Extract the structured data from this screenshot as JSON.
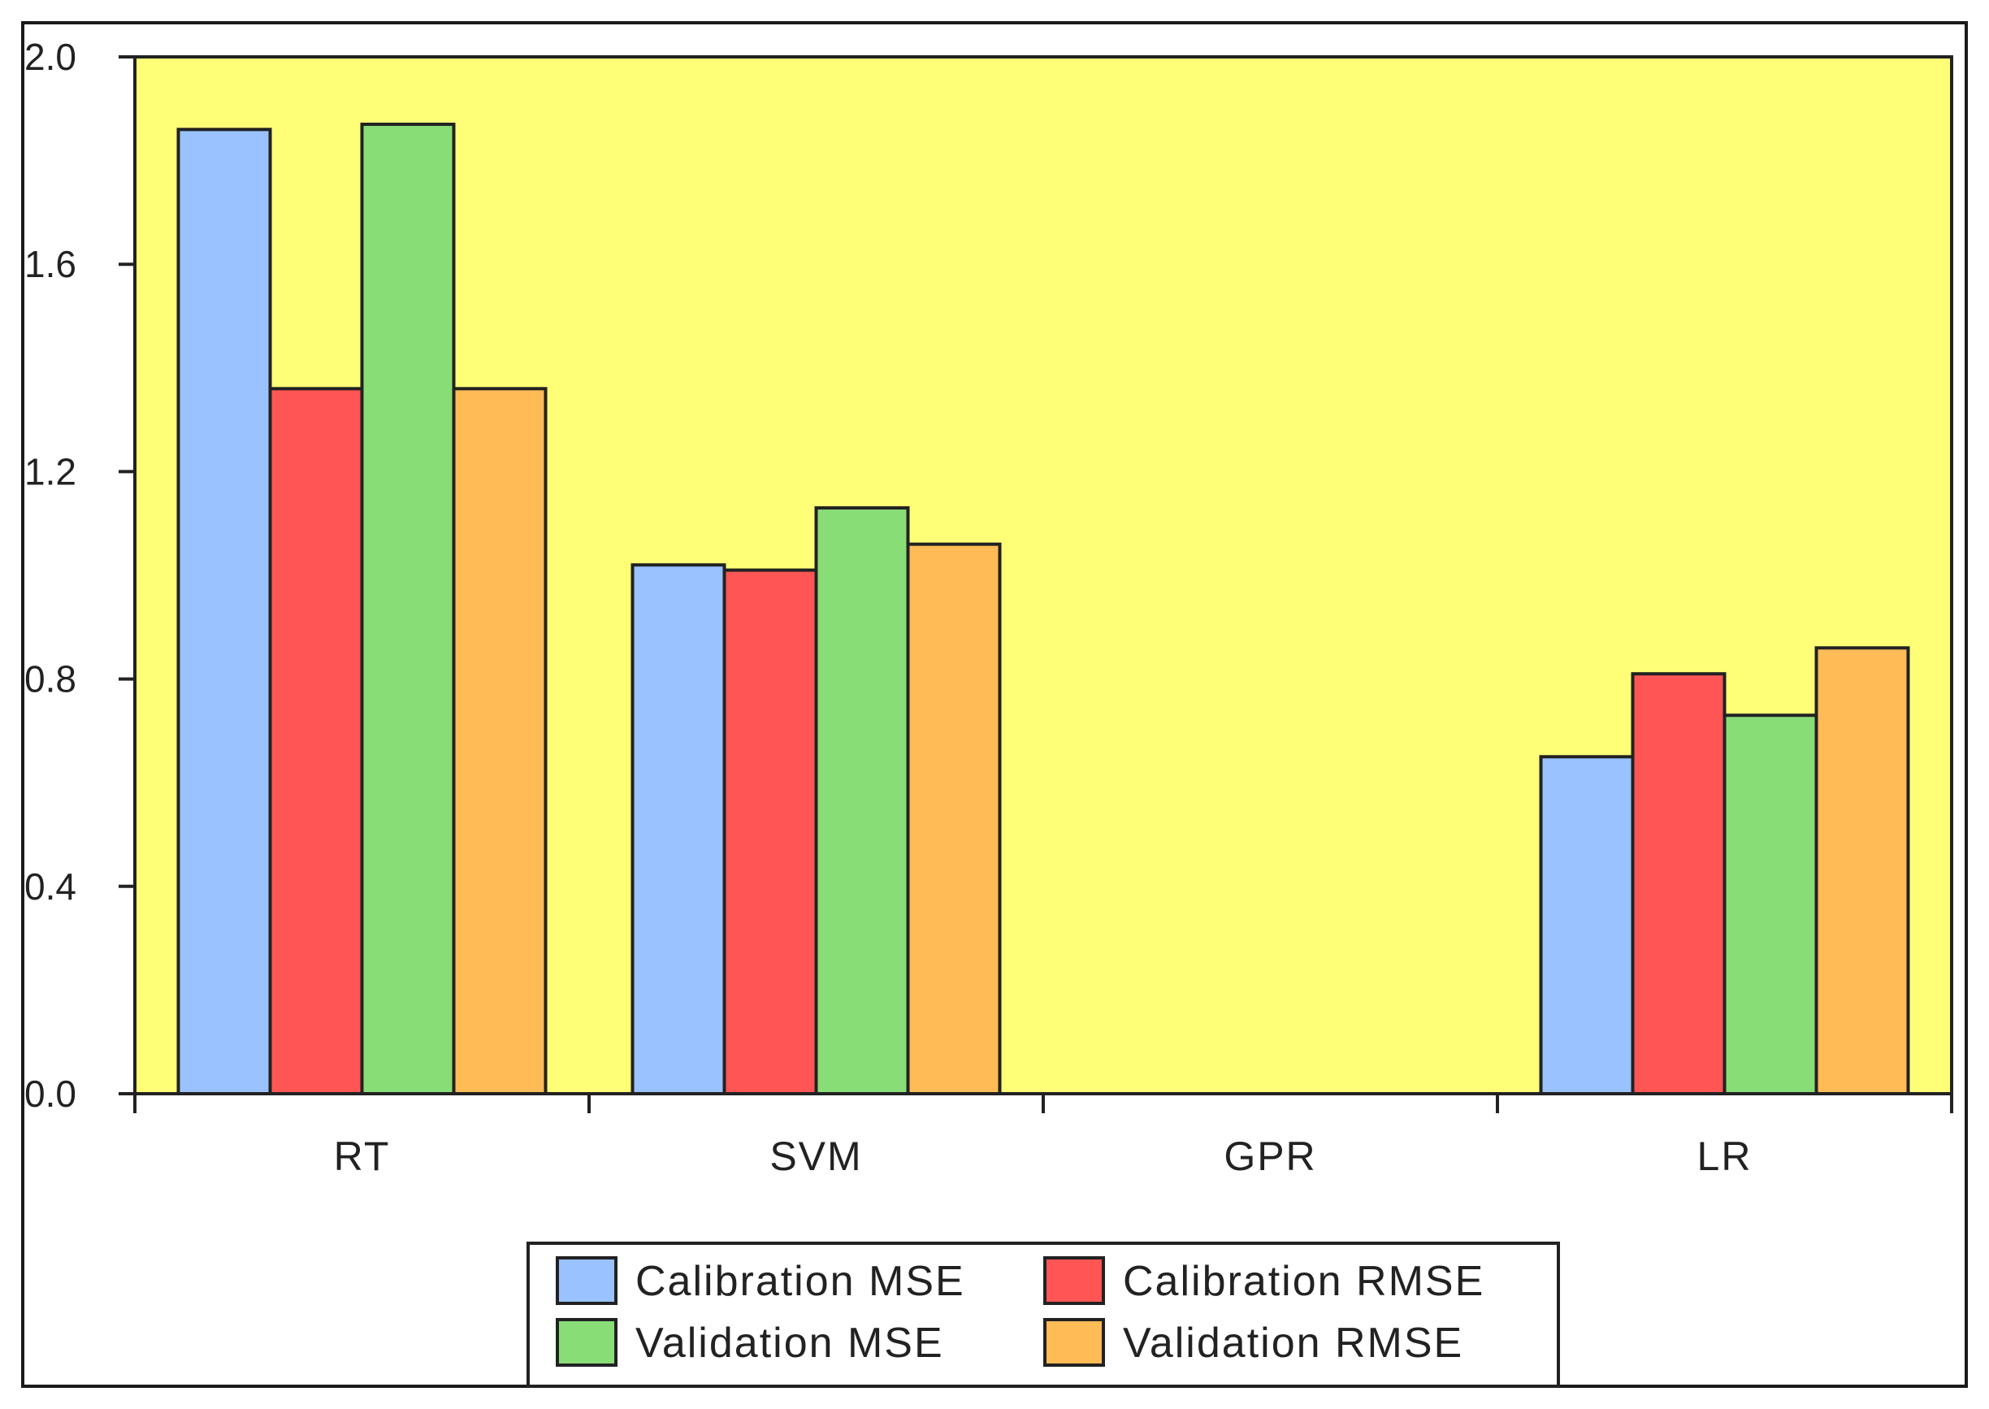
{
  "chart_data": {
    "type": "bar",
    "title": "",
    "xlabel": "",
    "ylabel": "",
    "categories": [
      "RT",
      "SVM",
      "GPR",
      "LR"
    ],
    "series": [
      {
        "name": "Calibration MSE",
        "color": "#99C2FF",
        "values": [
          1.86,
          1.02,
          0,
          0.65
        ]
      },
      {
        "name": "Calibration RMSE",
        "color": "#FF5555",
        "values": [
          1.36,
          1.01,
          0,
          0.81
        ]
      },
      {
        "name": "Validation MSE",
        "color": "#88DD77",
        "values": [
          1.87,
          1.13,
          0,
          0.73
        ]
      },
      {
        "name": "Validation RMSE",
        "color": "#FFBB55",
        "values": [
          1.36,
          1.06,
          0,
          0.86
        ]
      }
    ],
    "ylim": [
      0,
      2.0
    ],
    "yticks": [
      "0.0",
      "0.4",
      "0.8",
      "1.2",
      "1.6",
      "2.0"
    ],
    "ytick_values": [
      0,
      0.4,
      0.8,
      1.2,
      1.6,
      2.0
    ],
    "plot_background": "#FFFF77",
    "grid": false,
    "legend_position": "bottom-center"
  }
}
